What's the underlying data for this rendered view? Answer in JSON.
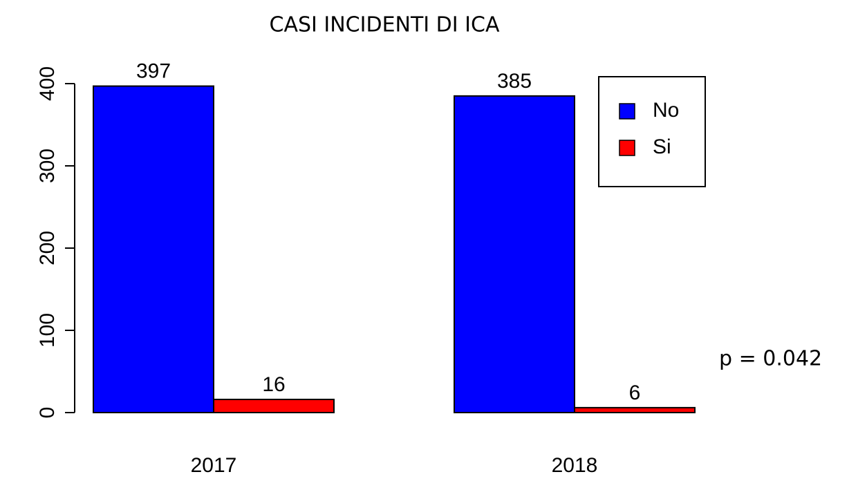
{
  "chart_data": {
    "type": "bar",
    "title": "CASI INCIDENTI DI ICA",
    "categories": [
      "2017",
      "2018"
    ],
    "series": [
      {
        "name": "No",
        "color": "#0000ff",
        "values": [
          397,
          385
        ]
      },
      {
        "name": "Si",
        "color": "#ff0000",
        "values": [
          16,
          6
        ]
      }
    ],
    "ylim": [
      0,
      400
    ],
    "yticks": [
      0,
      100,
      200,
      300,
      400
    ],
    "legend": "topright",
    "annotation": "p = 0.042"
  }
}
